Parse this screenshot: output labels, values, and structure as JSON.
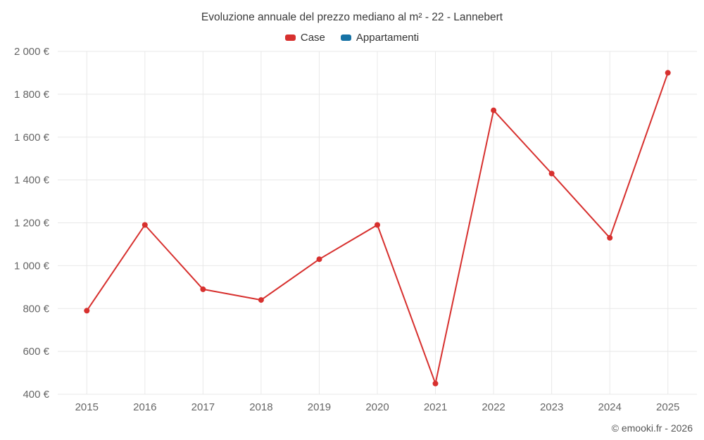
{
  "chart_data": {
    "type": "line",
    "title": "Evoluzione annuale del prezzo mediano al m² - 22 - Lannebert",
    "categories": [
      "2015",
      "2016",
      "2017",
      "2018",
      "2019",
      "2020",
      "2021",
      "2022",
      "2023",
      "2024",
      "2025"
    ],
    "series": [
      {
        "name": "Case",
        "color": "#d7302e",
        "values": [
          790,
          1190,
          890,
          840,
          1030,
          1190,
          450,
          1725,
          1430,
          1130,
          1900
        ]
      },
      {
        "name": "Appartamenti",
        "color": "#1672a5",
        "values": []
      }
    ],
    "ylim": [
      400,
      2000
    ],
    "yticks": [
      400,
      600,
      800,
      1000,
      1200,
      1400,
      1600,
      1800,
      2000
    ],
    "ytick_labels": [
      "400 €",
      "600 €",
      "800 €",
      "1 000 €",
      "1 200 €",
      "1 400 €",
      "1 600 €",
      "1 800 €",
      "2 000 €"
    ],
    "grid": true,
    "legend_position": "top",
    "marker": "circle"
  },
  "footer": {
    "copyright": "© emooki.fr - 2026"
  },
  "style": {
    "grid_color": "#e8e8e8",
    "tick_color": "#666666"
  }
}
